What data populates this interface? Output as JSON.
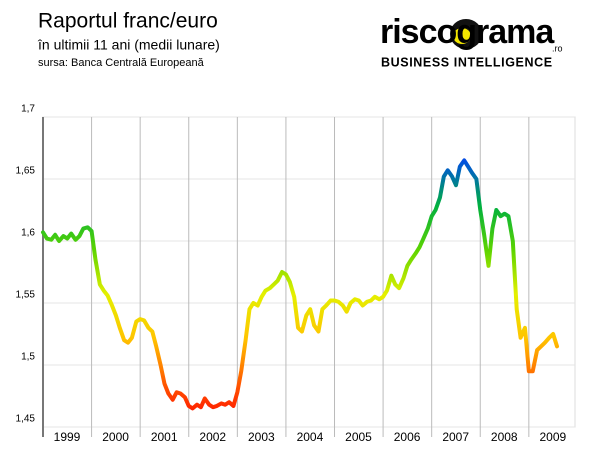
{
  "chart_data": {
    "type": "line",
    "title": "Raportul franc/euro",
    "subtitle": "în ultimii 11 ani (medii lunare)",
    "source": "sursa: Banca Centrală Europeană",
    "logo": {
      "name": "riscograma",
      "domain": ".ro",
      "tagline": "BUSINESS INTELLIGENCE"
    },
    "x": [
      1999,
      1999.08,
      1999.17,
      1999.25,
      1999.33,
      1999.42,
      1999.5,
      1999.58,
      1999.67,
      1999.75,
      1999.83,
      1999.92,
      2000,
      2000.08,
      2000.17,
      2000.25,
      2000.33,
      2000.42,
      2000.5,
      2000.58,
      2000.67,
      2000.75,
      2000.83,
      2000.92,
      2001,
      2001.08,
      2001.17,
      2001.25,
      2001.33,
      2001.42,
      2001.5,
      2001.58,
      2001.67,
      2001.75,
      2001.83,
      2001.92,
      2002,
      2002.08,
      2002.17,
      2002.25,
      2002.33,
      2002.42,
      2002.5,
      2002.58,
      2002.67,
      2002.75,
      2002.83,
      2002.92,
      2003,
      2003.08,
      2003.17,
      2003.25,
      2003.33,
      2003.42,
      2003.5,
      2003.58,
      2003.67,
      2003.75,
      2003.83,
      2003.92,
      2004,
      2004.08,
      2004.17,
      2004.25,
      2004.33,
      2004.42,
      2004.5,
      2004.58,
      2004.67,
      2004.75,
      2004.83,
      2004.92,
      2005,
      2005.08,
      2005.17,
      2005.25,
      2005.33,
      2005.42,
      2005.5,
      2005.58,
      2005.67,
      2005.75,
      2005.83,
      2005.92,
      2006,
      2006.08,
      2006.17,
      2006.25,
      2006.33,
      2006.42,
      2006.5,
      2006.58,
      2006.67,
      2006.75,
      2006.83,
      2006.92,
      2007,
      2007.08,
      2007.17,
      2007.25,
      2007.33,
      2007.42,
      2007.5,
      2007.58,
      2007.67,
      2007.75,
      2007.83,
      2007.92,
      2008,
      2008.08,
      2008.17,
      2008.25,
      2008.33,
      2008.42,
      2008.5,
      2008.58,
      2008.67,
      2008.75,
      2008.83,
      2008.92,
      2009,
      2009.08,
      2009.17,
      2009.25,
      2009.33,
      2009.42,
      2009.5,
      2009.58
    ],
    "values": [
      1.607,
      1.602,
      1.601,
      1.605,
      1.6,
      1.604,
      1.602,
      1.606,
      1.601,
      1.604,
      1.61,
      1.611,
      1.608,
      1.585,
      1.565,
      1.56,
      1.556,
      1.548,
      1.54,
      1.53,
      1.52,
      1.518,
      1.522,
      1.535,
      1.537,
      1.536,
      1.53,
      1.527,
      1.515,
      1.5,
      1.485,
      1.477,
      1.472,
      1.478,
      1.477,
      1.474,
      1.467,
      1.465,
      1.468,
      1.466,
      1.473,
      1.468,
      1.466,
      1.467,
      1.469,
      1.468,
      1.47,
      1.467,
      1.478,
      1.495,
      1.52,
      1.545,
      1.55,
      1.548,
      1.555,
      1.56,
      1.562,
      1.565,
      1.568,
      1.575,
      1.573,
      1.567,
      1.555,
      1.53,
      1.527,
      1.54,
      1.545,
      1.532,
      1.527,
      1.545,
      1.548,
      1.552,
      1.552,
      1.551,
      1.548,
      1.543,
      1.55,
      1.553,
      1.552,
      1.548,
      1.551,
      1.552,
      1.555,
      1.553,
      1.555,
      1.56,
      1.572,
      1.565,
      1.562,
      1.57,
      1.58,
      1.585,
      1.59,
      1.595,
      1.602,
      1.61,
      1.62,
      1.625,
      1.635,
      1.652,
      1.657,
      1.652,
      1.645,
      1.66,
      1.665,
      1.66,
      1.655,
      1.65,
      1.625,
      1.605,
      1.58,
      1.61,
      1.625,
      1.62,
      1.622,
      1.62,
      1.6,
      1.545,
      1.522,
      1.53,
      1.495,
      1.495,
      1.512,
      1.515,
      1.518,
      1.522,
      1.525,
      1.515
    ],
    "line_colors": [
      "#ff0000",
      "#ff5a00",
      "#ffc400",
      "#e4f000",
      "#5cd400",
      "#00b040",
      "#0050e0",
      "#7a00ff"
    ],
    "xlim": [
      1999,
      2009.95
    ],
    "xticks": [
      1999,
      2000,
      2001,
      2002,
      2003,
      2004,
      2005,
      2006,
      2007,
      2008,
      2009
    ],
    "ylim": [
      1.45,
      1.7
    ],
    "yticks": [
      {
        "value": 1.45,
        "label": "1,45"
      },
      {
        "value": 1.5,
        "label": "1,5"
      },
      {
        "value": 1.55,
        "label": "1,55"
      },
      {
        "value": 1.6,
        "label": "1,6"
      },
      {
        "value": 1.65,
        "label": "1,65"
      },
      {
        "value": 1.7,
        "label": "1,7"
      }
    ],
    "grid": true
  }
}
